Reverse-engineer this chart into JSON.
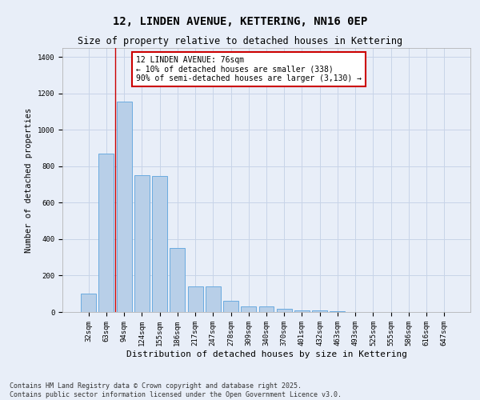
{
  "title": "12, LINDEN AVENUE, KETTERING, NN16 0EP",
  "subtitle": "Size of property relative to detached houses in Kettering",
  "xlabel": "Distribution of detached houses by size in Kettering",
  "ylabel": "Number of detached properties",
  "categories": [
    "32sqm",
    "63sqm",
    "94sqm",
    "124sqm",
    "155sqm",
    "186sqm",
    "217sqm",
    "247sqm",
    "278sqm",
    "309sqm",
    "340sqm",
    "370sqm",
    "401sqm",
    "432sqm",
    "463sqm",
    "493sqm",
    "525sqm",
    "555sqm",
    "586sqm",
    "616sqm",
    "647sqm"
  ],
  "values": [
    100,
    870,
    1155,
    750,
    745,
    350,
    140,
    140,
    60,
    30,
    30,
    18,
    10,
    10,
    5,
    0,
    0,
    0,
    0,
    0,
    0
  ],
  "bar_color": "#b8cfe8",
  "bar_edge_color": "#6aabe0",
  "grid_color": "#c8d4e8",
  "background_color": "#e8eef8",
  "annotation_text": "12 LINDEN AVENUE: 76sqm\n← 10% of detached houses are smaller (338)\n90% of semi-detached houses are larger (3,130) →",
  "annotation_box_color": "#ffffff",
  "annotation_box_edge": "#cc0000",
  "vline_x": 1.5,
  "vline_color": "#cc0000",
  "ylim": [
    0,
    1450
  ],
  "yticks": [
    0,
    200,
    400,
    600,
    800,
    1000,
    1200,
    1400
  ],
  "footer_text": "Contains HM Land Registry data © Crown copyright and database right 2025.\nContains public sector information licensed under the Open Government Licence v3.0.",
  "title_fontsize": 10,
  "subtitle_fontsize": 8.5,
  "axis_label_fontsize": 7.5,
  "tick_fontsize": 6.5,
  "annotation_fontsize": 7,
  "footer_fontsize": 6
}
